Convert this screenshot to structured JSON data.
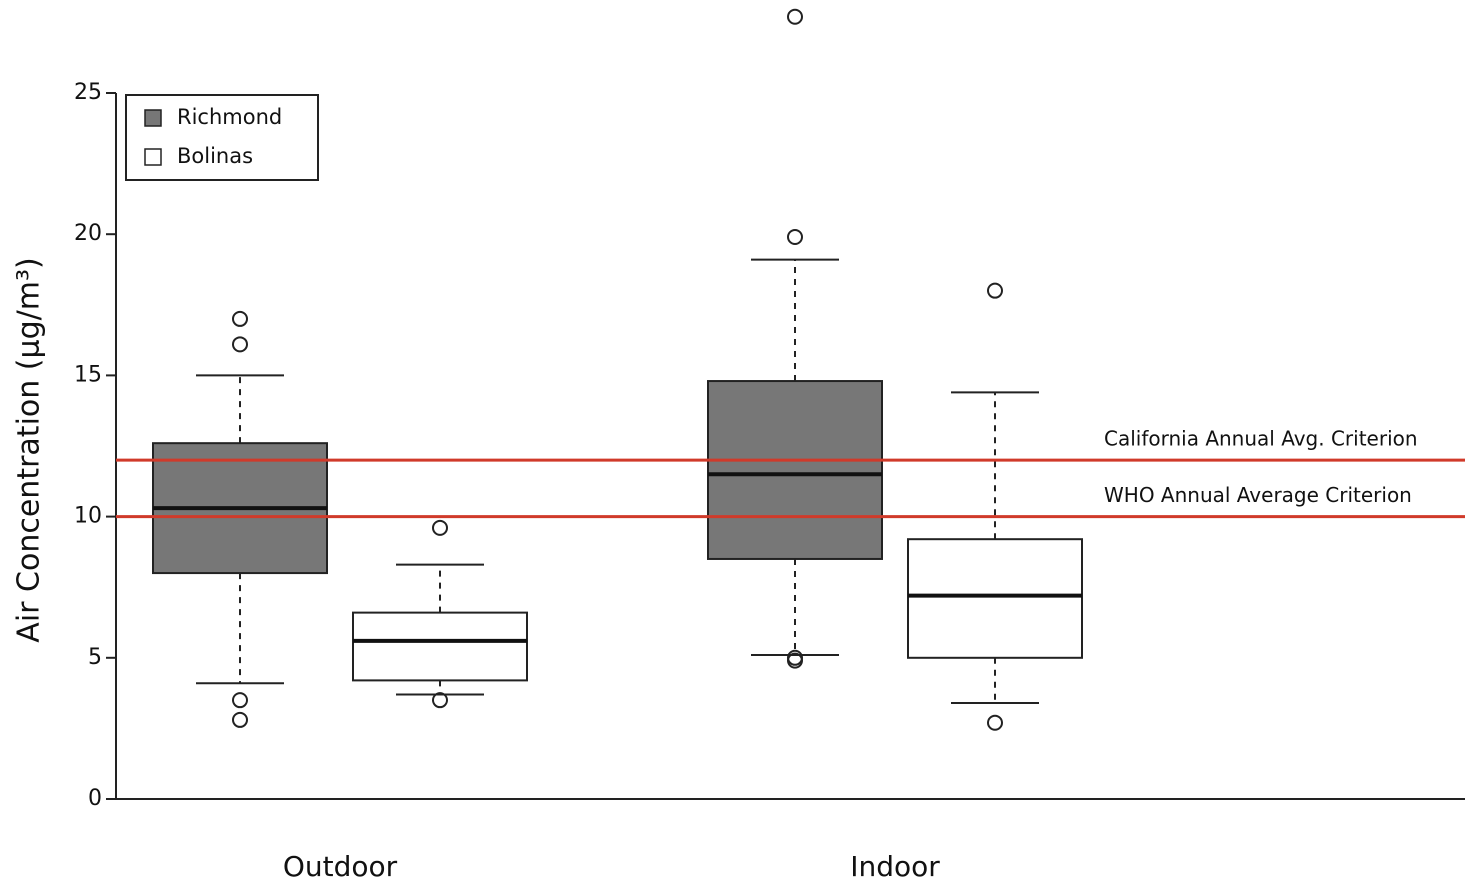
{
  "chart_data": {
    "type": "box",
    "y_label": "Air Concentration (µg/m³)",
    "categories": [
      "Outdoor",
      "Indoor"
    ],
    "ylim": [
      0,
      25
    ],
    "yticks": [
      0,
      5,
      10,
      15,
      20,
      25
    ],
    "legend_position": "upper left",
    "series": [
      {
        "name": "Richmond",
        "color": "#777777",
        "boxes": [
          {
            "whislo": 4.1,
            "q1": 8.0,
            "med": 10.3,
            "q3": 12.6,
            "whishi": 15.0,
            "fliers": [
              16.1,
              17.0,
              3.5,
              2.8
            ]
          },
          {
            "whislo": 5.1,
            "q1": 8.5,
            "med": 11.5,
            "q3": 14.8,
            "whishi": 19.1,
            "fliers": [
              19.9,
              27.7,
              5.0,
              4.9
            ]
          }
        ]
      },
      {
        "name": "Bolinas",
        "color": "#ffffff",
        "boxes": [
          {
            "whislo": 3.7,
            "q1": 4.2,
            "med": 5.6,
            "q3": 6.6,
            "whishi": 8.3,
            "fliers": [
              9.6,
              3.5
            ]
          },
          {
            "whislo": 3.4,
            "q1": 5.0,
            "med": 7.2,
            "q3": 9.2,
            "whishi": 14.4,
            "fliers": [
              18.0,
              2.7
            ]
          }
        ]
      }
    ],
    "reference_lines": [
      {
        "value": 12,
        "label": "California Annual Avg. Criterion",
        "color": "#d03a2a"
      },
      {
        "value": 10,
        "label": "WHO Annual Average Criterion",
        "color": "#d03a2a"
      }
    ]
  }
}
